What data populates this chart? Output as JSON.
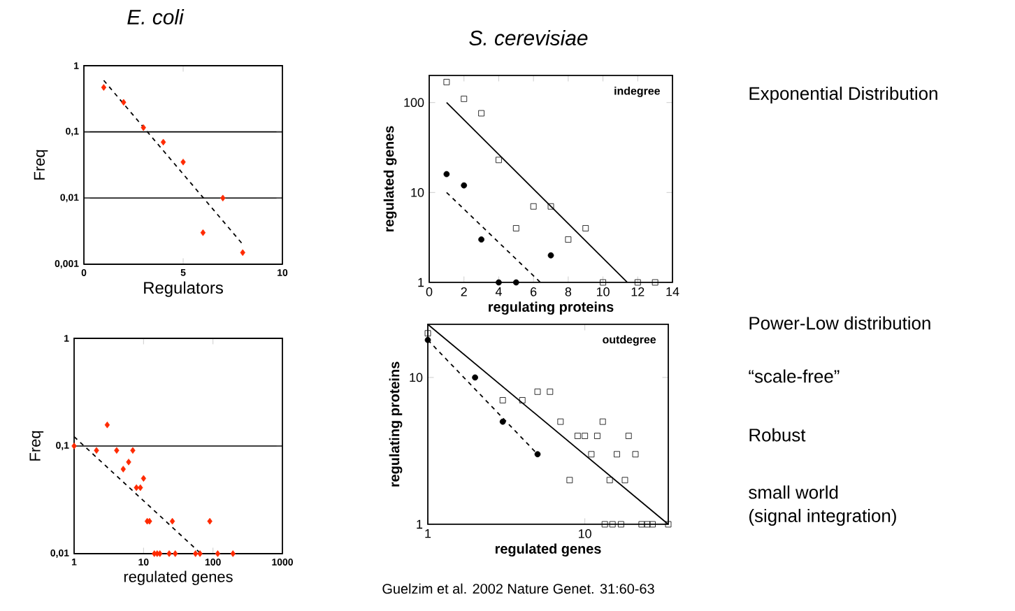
{
  "chart_data": [
    {
      "type": "scatter",
      "title": "E. coli",
      "xlabel": "Regulators",
      "ylabel": "Freq",
      "log": "y",
      "grid": "y",
      "xlim": [
        0,
        10
      ],
      "xticks": [
        0,
        5,
        10
      ],
      "ylim": [
        0.001,
        1
      ],
      "yticks": [
        {
          "value": 0.001,
          "label": "0,001"
        },
        {
          "value": 0.01,
          "label": "0,01"
        },
        {
          "value": 0.1,
          "label": "0,1"
        },
        1
      ],
      "series": [
        {
          "color": "#ff2a00",
          "marker": "diamond",
          "x": [
            1,
            2,
            3,
            4,
            5,
            6,
            7,
            8
          ],
          "values": [
            0.47,
            0.28,
            0.116,
            0.07,
            0.035,
            0.003,
            0.01,
            0.0015
          ]
        },
        {
          "type": "line",
          "color": "#000000",
          "marker": "none",
          "line_style": "dashed",
          "x": [
            1,
            8
          ],
          "values": [
            0.6,
            0.002
          ]
        }
      ]
    },
    {
      "type": "scatter",
      "title": "S. cerevisiae",
      "xlabel": "regulating proteins",
      "ylabel": "regulated genes",
      "log": "y",
      "xlim": [
        0,
        14
      ],
      "xticks": [
        0,
        2,
        4,
        6,
        8,
        10,
        12,
        14
      ],
      "ylim": [
        1,
        200
      ],
      "yticks": [
        1,
        10,
        100
      ],
      "annotations": [
        "indegree",
        "Exponential Distribution"
      ],
      "series": [
        {
          "color": "#000000",
          "marker": "square",
          "x": [
            1,
            2,
            3,
            4,
            5,
            6,
            7,
            8,
            9,
            10,
            12,
            13
          ],
          "values": [
            169,
            110,
            76,
            23,
            4,
            7,
            7,
            3,
            4,
            1,
            1,
            1
          ]
        },
        {
          "color": "#000000",
          "marker": "circle",
          "x": [
            1,
            2,
            3,
            4,
            5,
            7
          ],
          "values": [
            16,
            12,
            3,
            1,
            1,
            2
          ]
        },
        {
          "type": "line",
          "color": "#000000",
          "marker": "none",
          "line_style": "solid",
          "x": [
            1,
            11.4
          ],
          "values": [
            100,
            1
          ]
        },
        {
          "type": "line",
          "color": "#000000",
          "marker": "none",
          "line_style": "dashed",
          "x": [
            1,
            6.4
          ],
          "values": [
            10,
            1
          ]
        }
      ]
    },
    {
      "type": "scatter",
      "xlabel": "regulated genes",
      "ylabel": "Freq",
      "log": "xy",
      "grid": "y",
      "xlim": [
        1,
        1000
      ],
      "xticks": [
        1,
        10,
        100,
        1000
      ],
      "ylim": [
        0.01,
        1
      ],
      "yticks": [
        {
          "value": 0.01,
          "label": "0,01"
        },
        {
          "value": 0.1,
          "label": "0,1"
        },
        1
      ],
      "series": [
        {
          "color": "#ff2a00",
          "marker": "diamond",
          "x": [
            1,
            2.1,
            3,
            4.1,
            7,
            6.1,
            5.1,
            10,
            7.9,
            9,
            11.3,
            12.2,
            26,
            90,
            14.3,
            15.7,
            17.2,
            23.4,
            28.6,
            56,
            65,
            117,
            194
          ],
          "values": [
            0.1,
            0.091,
            0.157,
            0.091,
            0.091,
            0.071,
            0.061,
            0.05,
            0.041,
            0.041,
            0.02,
            0.02,
            0.02,
            0.02,
            0.01,
            0.01,
            0.01,
            0.01,
            0.01,
            0.01,
            0.01,
            0.01,
            0.01
          ]
        },
        {
          "type": "line",
          "color": "#000000",
          "marker": "none",
          "line_style": "dashed",
          "x": [
            1,
            67
          ],
          "values": [
            0.122,
            0.01
          ]
        }
      ]
    },
    {
      "type": "scatter",
      "xlabel": "regulated genes",
      "ylabel": "regulating proteins",
      "log": "xy",
      "xlim": [
        1,
        34
      ],
      "xticks": [
        1,
        10
      ],
      "ylim": [
        1,
        23
      ],
      "yticks": [
        1,
        10
      ],
      "annotations": [
        "outdegree",
        "Power-Low distribution",
        "“scale-free”",
        "Robust",
        "small world",
        "(signal integration)",
        "Guelzim et al. 2002 Nature Genet. 31:60-63"
      ],
      "series": [
        {
          "color": "#000000",
          "marker": "square",
          "x": [
            1,
            3,
            4,
            5,
            6,
            7,
            9,
            10,
            11,
            12,
            13,
            8,
            14.4,
            16,
            18,
            19,
            21,
            13.4,
            15,
            17,
            23,
            25,
            27,
            34
          ],
          "values": [
            20,
            7,
            7,
            8,
            8,
            5,
            4,
            4,
            3,
            4,
            5,
            2,
            2,
            3,
            2,
            4,
            3,
            1,
            1,
            1,
            1,
            1,
            1,
            1
          ]
        },
        {
          "color": "#000000",
          "marker": "circle",
          "x": [
            1,
            2,
            3,
            5
          ],
          "values": [
            18,
            10,
            5,
            3
          ]
        },
        {
          "type": "line",
          "color": "#000000",
          "marker": "none",
          "line_style": "solid",
          "x": [
            1,
            34
          ],
          "values": [
            23,
            1
          ]
        },
        {
          "type": "line",
          "color": "#000000",
          "marker": "none",
          "line_style": "dashed",
          "x": [
            1,
            5
          ],
          "values": [
            18,
            3
          ]
        }
      ]
    }
  ]
}
